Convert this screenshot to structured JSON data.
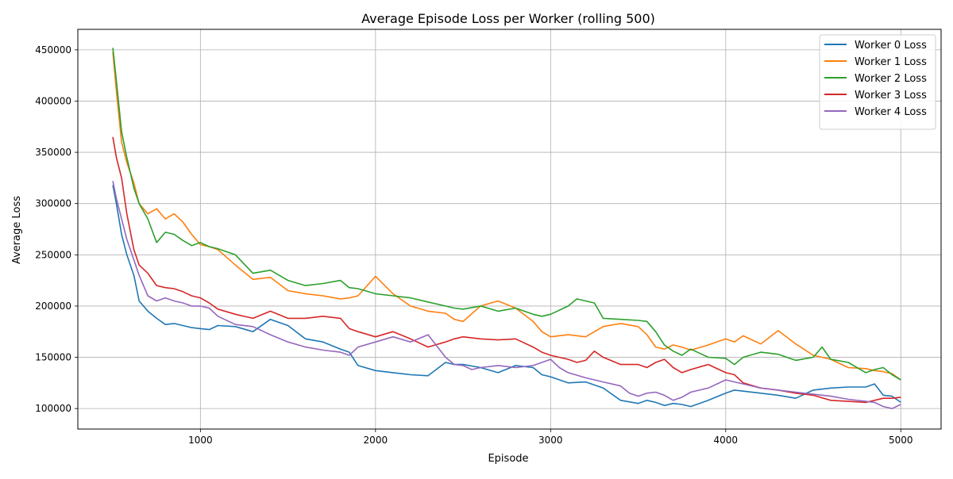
{
  "chart_data": {
    "type": "line",
    "title": "Average Episode Loss per Worker (rolling 500)",
    "xlabel": "Episode",
    "ylabel": "Average Loss",
    "xlim": [
      300,
      5230
    ],
    "ylim": [
      80000,
      470000
    ],
    "x_ticks": [
      1000,
      2000,
      3000,
      4000,
      5000
    ],
    "y_ticks": [
      100000,
      150000,
      200000,
      250000,
      300000,
      350000,
      400000,
      450000
    ],
    "x_tick_labels": [
      "1000",
      "2000",
      "3000",
      "4000",
      "5000"
    ],
    "y_tick_labels": [
      "100000",
      "150000",
      "200000",
      "250000",
      "300000",
      "350000",
      "400000",
      "450000"
    ],
    "grid": true,
    "legend_position": "top-right",
    "series": [
      {
        "name": "Worker 0 Loss",
        "color": "#1f77b4",
        "x": [
          500,
          520,
          550,
          580,
          620,
          650,
          700,
          750,
          800,
          850,
          900,
          950,
          1000,
          1050,
          1100,
          1200,
          1300,
          1400,
          1500,
          1600,
          1700,
          1800,
          1850,
          1900,
          2000,
          2100,
          2200,
          2300,
          2400,
          2450,
          2500,
          2600,
          2700,
          2800,
          2900,
          2950,
          3000,
          3100,
          3200,
          3300,
          3400,
          3500,
          3550,
          3600,
          3650,
          3700,
          3750,
          3800,
          3900,
          4000,
          4050,
          4100,
          4200,
          4300,
          4400,
          4500,
          4600,
          4700,
          4800,
          4850,
          4900,
          4950,
          5000
        ],
        "y": [
          318000,
          300000,
          270000,
          250000,
          230000,
          205000,
          195000,
          188000,
          182000,
          183000,
          181000,
          179000,
          178000,
          177000,
          181000,
          180000,
          175000,
          187000,
          181000,
          168000,
          165000,
          158000,
          155000,
          142000,
          137000,
          135000,
          133000,
          132000,
          145000,
          143000,
          143000,
          140000,
          135000,
          142000,
          140000,
          133000,
          131000,
          125000,
          126000,
          120000,
          108000,
          105000,
          108000,
          106000,
          103000,
          105000,
          104000,
          102000,
          108000,
          115000,
          118000,
          117000,
          115000,
          113000,
          110000,
          118000,
          120000,
          121000,
          121000,
          124000,
          113000,
          112000,
          106000
        ]
      },
      {
        "name": "Worker 1 Loss",
        "color": "#ff7f0e",
        "x": [
          500,
          520,
          550,
          580,
          620,
          650,
          700,
          750,
          800,
          850,
          900,
          950,
          1000,
          1050,
          1100,
          1200,
          1300,
          1400,
          1500,
          1600,
          1700,
          1800,
          1850,
          1900,
          2000,
          2100,
          2200,
          2300,
          2400,
          2450,
          2500,
          2600,
          2700,
          2800,
          2900,
          2950,
          3000,
          3100,
          3200,
          3300,
          3400,
          3500,
          3550,
          3600,
          3650,
          3700,
          3750,
          3800,
          3900,
          4000,
          4050,
          4100,
          4200,
          4300,
          4400,
          4500,
          4600,
          4700,
          4800,
          4850,
          4900,
          4950,
          5000
        ],
        "y": [
          448000,
          410000,
          360000,
          340000,
          320000,
          300000,
          290000,
          295000,
          285000,
          290000,
          282000,
          270000,
          260000,
          258000,
          255000,
          240000,
          226000,
          228000,
          215000,
          212000,
          210000,
          207000,
          208000,
          210000,
          229000,
          212000,
          200000,
          195000,
          193000,
          187000,
          185000,
          200000,
          205000,
          198000,
          185000,
          175000,
          170000,
          172000,
          170000,
          180000,
          183000,
          180000,
          172000,
          160000,
          158000,
          162000,
          160000,
          157000,
          162000,
          168000,
          165000,
          171000,
          163000,
          176000,
          163000,
          152000,
          148000,
          140000,
          139000,
          137000,
          136000,
          134000,
          128000
        ]
      },
      {
        "name": "Worker 2 Loss",
        "color": "#2ca02c",
        "x": [
          500,
          520,
          550,
          580,
          620,
          650,
          700,
          750,
          800,
          850,
          900,
          950,
          1000,
          1050,
          1100,
          1200,
          1300,
          1400,
          1500,
          1600,
          1700,
          1800,
          1850,
          1900,
          2000,
          2100,
          2200,
          2300,
          2400,
          2450,
          2500,
          2600,
          2700,
          2800,
          2900,
          2950,
          3000,
          3100,
          3150,
          3200,
          3250,
          3300,
          3400,
          3500,
          3550,
          3600,
          3650,
          3700,
          3750,
          3800,
          3900,
          4000,
          4050,
          4100,
          4200,
          4300,
          4400,
          4500,
          4550,
          4600,
          4700,
          4800,
          4850,
          4900,
          4950,
          5000
        ],
        "y": [
          452000,
          420000,
          370000,
          345000,
          315000,
          300000,
          285000,
          262000,
          272000,
          270000,
          264000,
          259000,
          262000,
          258000,
          256000,
          250000,
          232000,
          235000,
          225000,
          220000,
          222000,
          225000,
          218000,
          217000,
          212000,
          210000,
          208000,
          204000,
          200000,
          198000,
          197000,
          200000,
          195000,
          198000,
          192000,
          190000,
          192000,
          200000,
          207000,
          205000,
          203000,
          188000,
          187000,
          186000,
          185000,
          175000,
          162000,
          156000,
          152000,
          158000,
          150000,
          149000,
          143000,
          150000,
          155000,
          153000,
          147000,
          150000,
          160000,
          148000,
          145000,
          135000,
          138000,
          140000,
          133000,
          128000
        ]
      },
      {
        "name": "Worker 3 Loss",
        "color": "#d62728",
        "x": [
          500,
          520,
          550,
          580,
          620,
          650,
          700,
          750,
          800,
          850,
          900,
          950,
          1000,
          1050,
          1100,
          1200,
          1300,
          1400,
          1500,
          1600,
          1700,
          1800,
          1850,
          1900,
          2000,
          2100,
          2200,
          2300,
          2400,
          2450,
          2500,
          2600,
          2700,
          2800,
          2900,
          2950,
          3000,
          3100,
          3150,
          3200,
          3250,
          3300,
          3400,
          3500,
          3550,
          3600,
          3650,
          3700,
          3750,
          3800,
          3900,
          4000,
          4050,
          4100,
          4200,
          4300,
          4400,
          4500,
          4600,
          4700,
          4800,
          4850,
          4900,
          4950,
          5000
        ],
        "y": [
          365000,
          345000,
          325000,
          290000,
          255000,
          240000,
          232000,
          220000,
          218000,
          217000,
          214000,
          210000,
          208000,
          203000,
          197000,
          192000,
          188000,
          195000,
          188000,
          188000,
          190000,
          188000,
          178000,
          175000,
          170000,
          175000,
          168000,
          160000,
          165000,
          168000,
          170000,
          168000,
          167000,
          168000,
          160000,
          155000,
          152000,
          148000,
          145000,
          147000,
          156000,
          150000,
          143000,
          143000,
          140000,
          145000,
          148000,
          140000,
          135000,
          138000,
          143000,
          135000,
          133000,
          125000,
          120000,
          118000,
          115000,
          113000,
          108000,
          107000,
          106000,
          108000,
          110000,
          110000,
          111000
        ]
      },
      {
        "name": "Worker 4 Loss",
        "color": "#9467bd",
        "x": [
          500,
          520,
          550,
          580,
          620,
          650,
          700,
          750,
          800,
          850,
          900,
          950,
          1000,
          1050,
          1100,
          1200,
          1300,
          1400,
          1500,
          1600,
          1700,
          1800,
          1850,
          1900,
          2000,
          2100,
          2200,
          2300,
          2400,
          2450,
          2500,
          2550,
          2600,
          2700,
          2800,
          2900,
          2950,
          3000,
          3050,
          3100,
          3200,
          3300,
          3400,
          3450,
          3500,
          3550,
          3600,
          3650,
          3700,
          3750,
          3800,
          3900,
          4000,
          4050,
          4100,
          4200,
          4300,
          4400,
          4500,
          4600,
          4700,
          4800,
          4850,
          4900,
          4950,
          5000
        ],
        "y": [
          322000,
          305000,
          285000,
          265000,
          245000,
          230000,
          210000,
          205000,
          208000,
          205000,
          203000,
          200000,
          200000,
          198000,
          190000,
          182000,
          180000,
          172000,
          165000,
          160000,
          157000,
          155000,
          152000,
          160000,
          165000,
          170000,
          165000,
          172000,
          150000,
          143000,
          142000,
          138000,
          140000,
          142000,
          140000,
          142000,
          145000,
          148000,
          140000,
          135000,
          130000,
          126000,
          122000,
          115000,
          112000,
          115000,
          116000,
          113000,
          108000,
          111000,
          116000,
          120000,
          128000,
          126000,
          124000,
          120000,
          118000,
          116000,
          114000,
          112000,
          109000,
          107000,
          106000,
          102000,
          100000,
          104000
        ]
      }
    ]
  }
}
